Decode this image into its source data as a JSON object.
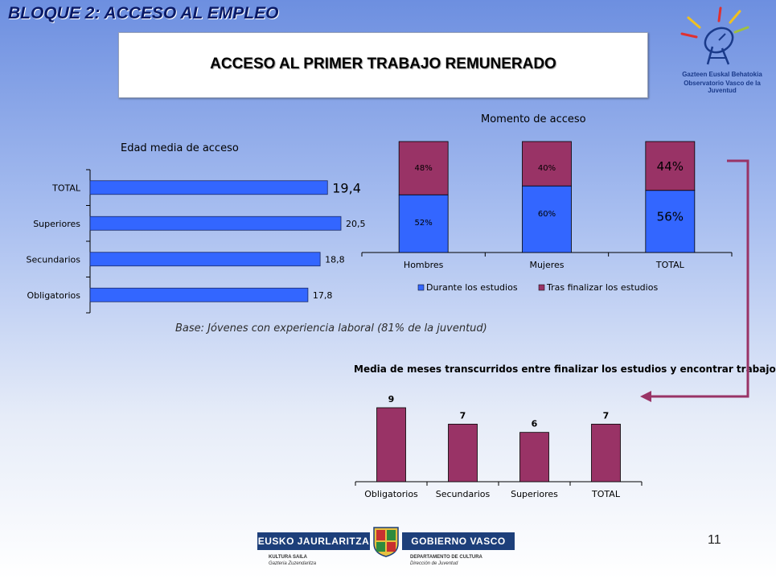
{
  "header": {
    "section_title": "BLOQUE 2: ACCESO AL EMPLEO",
    "main_title": "ACCESO AL PRIMER TRABAJO REMUNERADO"
  },
  "observatorio_logo": {
    "line1": "Gazteen Euskal Behatokia",
    "line2": "Observatorio Vasco de la Juventud"
  },
  "note": "Base: Jóvenes con experiencia laboral (81% de la juventud)",
  "page_number": "11",
  "footer_logo": {
    "left_label": "EUSKO JAURLARITZA",
    "right_label": "GOBIERNO VASCO",
    "left_sub1": "KULTURA SAILA",
    "left_sub2": "Gazteria Zuzendaritza",
    "right_sub1": "DEPARTAMENTO DE CULTURA",
    "right_sub2": "Dirección de Juventud"
  },
  "colors": {
    "blue": "#3366ff",
    "maroon": "#993366",
    "arrow": "#993366"
  },
  "chart_data": [
    {
      "type": "bar",
      "orientation": "horizontal",
      "title": "Edad media de acceso",
      "categories": [
        "TOTAL",
        "Superiores",
        "Secundarios",
        "Obligatorios"
      ],
      "values": [
        19.4,
        20.5,
        18.8,
        17.8
      ],
      "value_labels": [
        "19,4",
        "20,5",
        "18,8",
        "17,8"
      ],
      "xlim": [
        0,
        20.5
      ],
      "grid": false
    },
    {
      "type": "bar",
      "stacked": true,
      "title": "Momento de acceso",
      "categories": [
        "Hombres",
        "Mujeres",
        "TOTAL"
      ],
      "series": [
        {
          "name": "Durante los estudios",
          "values": [
            52,
            60,
            56
          ],
          "labels": [
            "52%",
            "60%",
            "56%"
          ]
        },
        {
          "name": "Tras finalizar los estudios",
          "values": [
            48,
            40,
            44
          ],
          "labels": [
            "48%",
            "40%",
            "44%"
          ]
        }
      ],
      "ylim": [
        0,
        100
      ],
      "legend": "bottom",
      "grid": false
    },
    {
      "type": "bar",
      "title": "Media de meses transcurridos entre finalizar los estudios y encontrar trabajo",
      "categories": [
        "Obligatorios",
        "Secundarios",
        "Superiores",
        "TOTAL"
      ],
      "values": [
        9,
        7,
        6,
        7
      ],
      "ylim": [
        0,
        9
      ],
      "grid": false
    }
  ]
}
